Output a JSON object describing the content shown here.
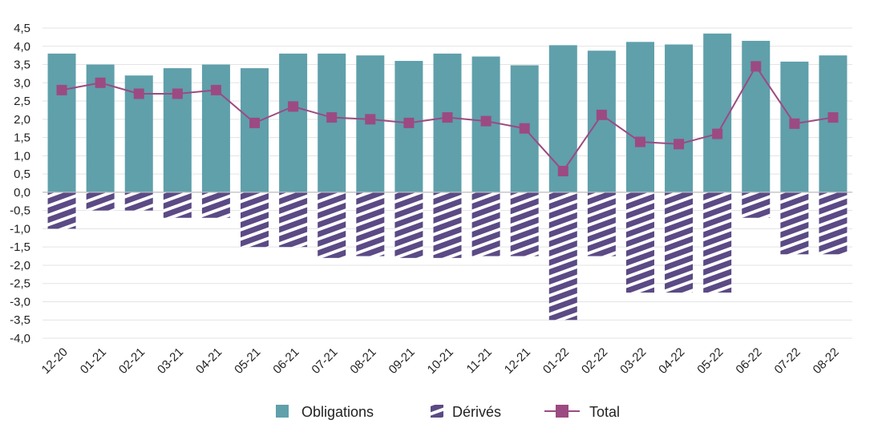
{
  "chart_data": {
    "type": "bar",
    "title": "",
    "xlabel": "",
    "ylabel": "",
    "ylim": [
      -4.0,
      4.5
    ],
    "yticks": [
      4.5,
      4.0,
      3.5,
      3.0,
      2.5,
      2.0,
      1.5,
      1.0,
      0.5,
      0.0,
      -0.5,
      -1.0,
      -1.5,
      -2.0,
      -2.5,
      -3.0,
      -3.5,
      -4.0
    ],
    "ytick_labels": [
      "4,5",
      "4,0",
      "3,5",
      "3,0",
      "2,5",
      "2,0",
      "1,5",
      "1,0",
      "0,5",
      "0,0",
      "-0,5",
      "-1,0",
      "-1,5",
      "-2,0",
      "-2,5",
      "-3,0",
      "-3,5",
      "-4,0"
    ],
    "grid": true,
    "legend_position": "bottom",
    "categories": [
      "12-20",
      "01-21",
      "02-21",
      "03-21",
      "04-21",
      "05-21",
      "06-21",
      "07-21",
      "08-21",
      "09-21",
      "10-21",
      "11-21",
      "12-21",
      "01-22",
      "02-22",
      "03-22",
      "04-22",
      "05-22",
      "06-22",
      "07-22",
      "08-22"
    ],
    "series": [
      {
        "name": "Obligations",
        "type": "bar",
        "color": "#5fa0ab",
        "values": [
          3.8,
          3.5,
          3.2,
          3.4,
          3.5,
          3.4,
          3.8,
          3.8,
          3.75,
          3.6,
          3.8,
          3.72,
          3.48,
          4.03,
          3.88,
          4.12,
          4.05,
          4.35,
          4.15,
          3.58,
          3.75
        ]
      },
      {
        "name": "Dérivés",
        "type": "bar",
        "pattern": "diagonal-stripes",
        "color": "#5b4a85",
        "values": [
          -1.0,
          -0.5,
          -0.5,
          -0.7,
          -0.7,
          -1.5,
          -1.5,
          -1.8,
          -1.75,
          -1.8,
          -1.8,
          -1.75,
          -1.75,
          -3.5,
          -1.75,
          -2.75,
          -2.75,
          -2.75,
          -0.7,
          -1.7,
          -1.7
        ]
      },
      {
        "name": "Total",
        "type": "line",
        "color": "#9c4a82",
        "marker": "square",
        "values": [
          2.8,
          3.0,
          2.7,
          2.7,
          2.8,
          1.9,
          2.35,
          2.05,
          2.0,
          1.9,
          2.05,
          1.95,
          1.75,
          0.58,
          2.12,
          1.38,
          1.32,
          1.6,
          3.45,
          1.88,
          2.05
        ]
      }
    ]
  }
}
